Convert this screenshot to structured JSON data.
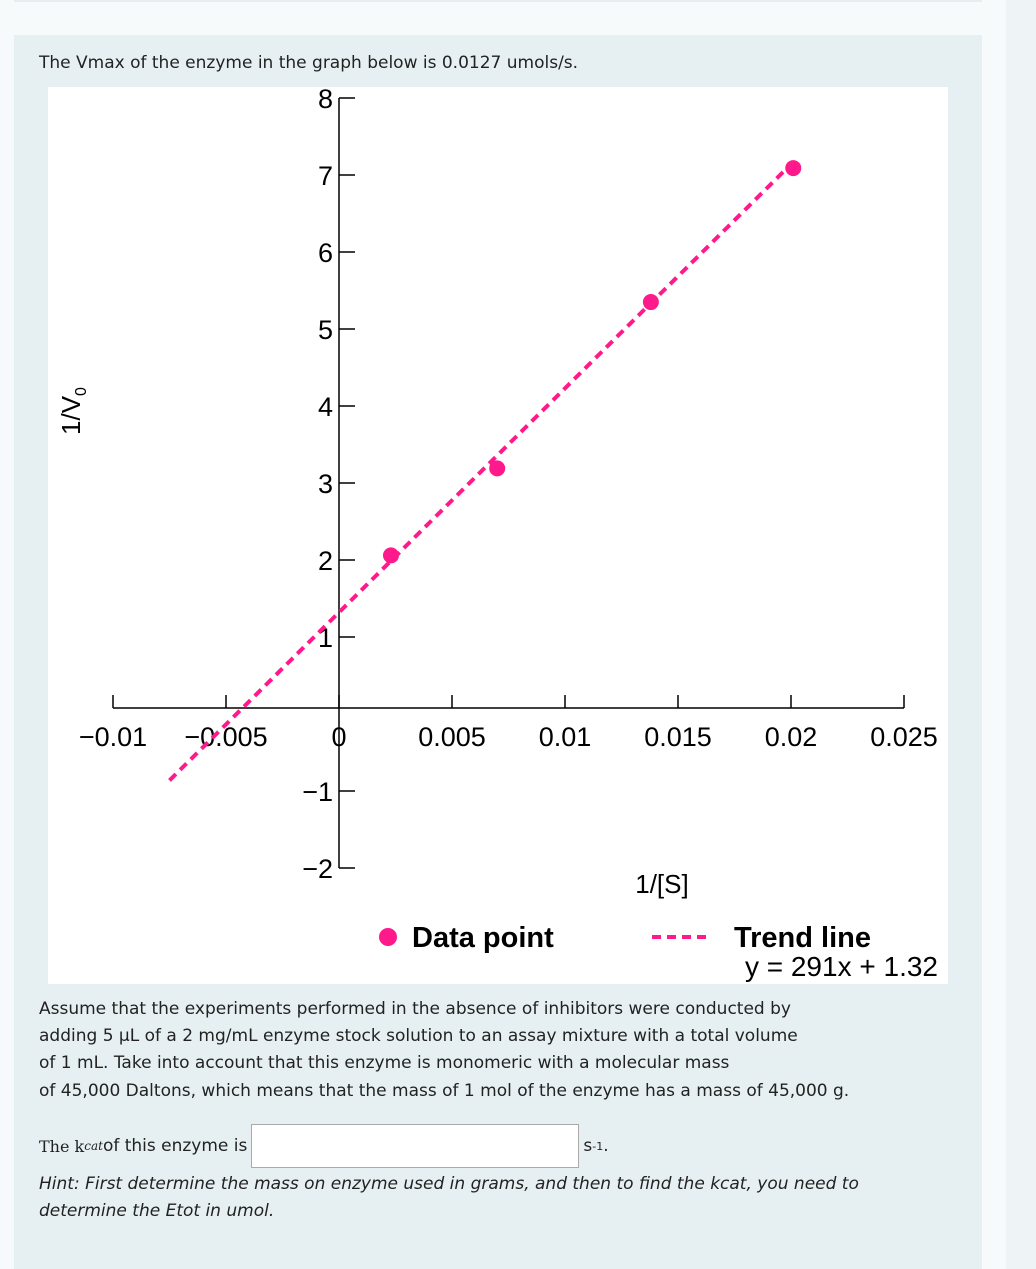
{
  "intro": "The Vmax of the enzyme in the graph below is 0.0127 umols/s.",
  "paragraph": [
    "Assume that the experiments performed in the absence of inhibitors were conducted by",
    "adding 5 µL of a 2 mg/mL enzyme stock solution to an assay mixture with a total volume",
    "of 1 mL. Take into account that this enzyme is monomeric with a molecular mass",
    "of 45,000 Daltons, which means that the mass of 1 mol of the enzyme has a mass of 45,000 g."
  ],
  "question": {
    "prefix": "The k",
    "sub": "cat",
    "suffix": " of this enzyme is",
    "value": "",
    "unit": "s",
    "unit_sup": "-1",
    "unit_end": "."
  },
  "hint": "Hint: First determine the mass on enzyme used in grams, and then to find the kcat, you need to determine the Etot in umol.",
  "colors": {
    "accent": "#ff1a8c"
  },
  "chart_data": {
    "type": "scatter",
    "xlabel": "1/[S]",
    "ylabel": "1/V0",
    "xlim": [
      -0.01,
      0.025
    ],
    "ylim": [
      -2,
      8
    ],
    "xticks": [
      -0.01,
      -0.005,
      0,
      0.005,
      0.01,
      0.015,
      0.02,
      0.025
    ],
    "xtick_labels": [
      "−0.01",
      "−0.005",
      "0",
      "0.005",
      "0.01",
      "0.015",
      "0.02",
      "0.025"
    ],
    "yticks": [
      -2,
      -1,
      1,
      2,
      3,
      4,
      5,
      6,
      7,
      8
    ],
    "ytick_labels": [
      "−2",
      "−1",
      "1",
      "2",
      "3",
      "4",
      "5",
      "6",
      "7",
      "8"
    ],
    "points": [
      {
        "x": 0.0023,
        "y": 2.06
      },
      {
        "x": 0.007,
        "y": 3.19
      },
      {
        "x": 0.0138,
        "y": 5.35
      },
      {
        "x": 0.0201,
        "y": 7.09
      }
    ],
    "trend": {
      "slope": 291,
      "intercept": 1.32,
      "x_range": [
        -0.0075,
        0.0201
      ]
    },
    "legend": {
      "points": "Data point",
      "line": "Trend line",
      "equation": "y = 291x + 1.32"
    }
  }
}
